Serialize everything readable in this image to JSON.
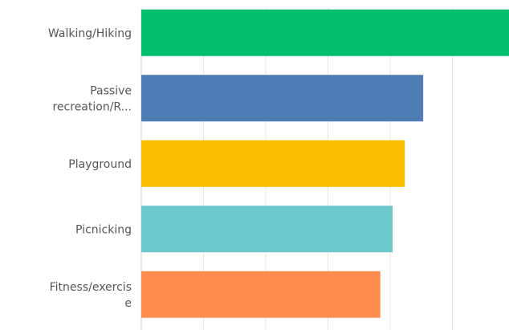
{
  "chart_data": {
    "type": "bar",
    "orientation": "horizontal",
    "categories": [
      [
        "Walking/Hiking"
      ],
      [
        "Passive",
        "recreation/R..."
      ],
      [
        "Playground"
      ],
      [
        "Picnicking"
      ],
      [
        "Fitness/exercis",
        "e"
      ]
    ],
    "values": [
      60,
      46,
      43,
      41,
      39
    ],
    "colors": [
      "#00bf6f",
      "#507cb6",
      "#f9be00",
      "#6bc8cd",
      "#ff8b4f"
    ],
    "xlim": [
      0,
      60
    ],
    "grid": true,
    "title": "",
    "xlabel": "",
    "ylabel": ""
  }
}
